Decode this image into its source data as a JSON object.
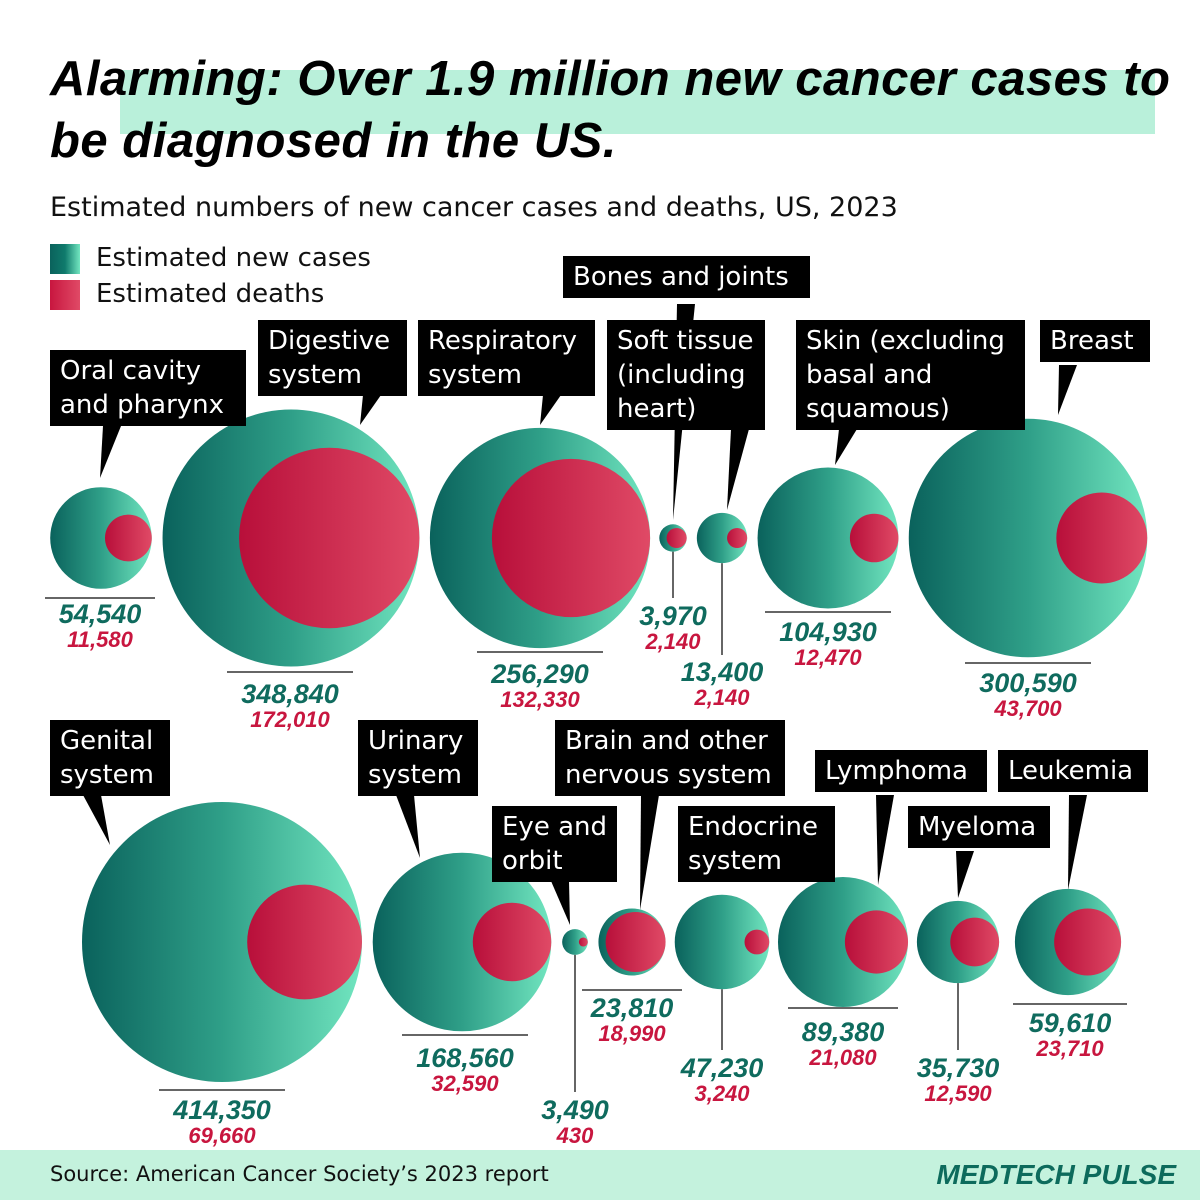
{
  "chart_data": {
    "type": "nested-bubble",
    "title": "Alarming: Over 1.9 million new cancer cases to be diagnosed in the US.",
    "subtitle": "Estimated numbers of new cancer cases and deaths, US, 2023",
    "categories": [
      "Oral cavity and pharynx",
      "Digestive system",
      "Respiratory system",
      "Bones and joints",
      "Soft tissue (including heart)",
      "Skin (excluding basal and squamous)",
      "Breast",
      "Genital system",
      "Urinary system",
      "Eye and orbit",
      "Brain and other nervous system",
      "Endocrine system",
      "Lymphoma",
      "Myeloma",
      "Leukemia"
    ],
    "series": [
      {
        "name": "Estimated new cases",
        "color": "#0f7a6c",
        "values": [
          54540,
          348840,
          256290,
          3970,
          13400,
          104930,
          300590,
          414350,
          168560,
          3490,
          23810,
          47230,
          89380,
          35730,
          59610
        ],
        "value_labels": [
          "54,540",
          "348,840",
          "256,290",
          "3,970",
          "13,400",
          "104,930",
          "300,590",
          "414,350",
          "168,560",
          "3,490",
          "23,810",
          "47,230",
          "89,380",
          "35,730",
          "59,610"
        ]
      },
      {
        "name": "Estimated deaths",
        "color": "#c8163f",
        "values": [
          11580,
          172010,
          132330,
          2140,
          2140,
          12470,
          43700,
          69660,
          32590,
          430,
          18990,
          3240,
          21080,
          12590,
          23710
        ],
        "value_labels": [
          "11,580",
          "172,010",
          "132,330",
          "2,140",
          "2,140",
          "12,470",
          "43,700",
          "69,660",
          "32,590",
          "430",
          "18,990",
          "3,240",
          "21,080",
          "12,590",
          "23,710"
        ]
      }
    ],
    "source": "Source:  American Cancer Society’s 2023 report",
    "brand": "MEDTECH PULSE"
  }
}
